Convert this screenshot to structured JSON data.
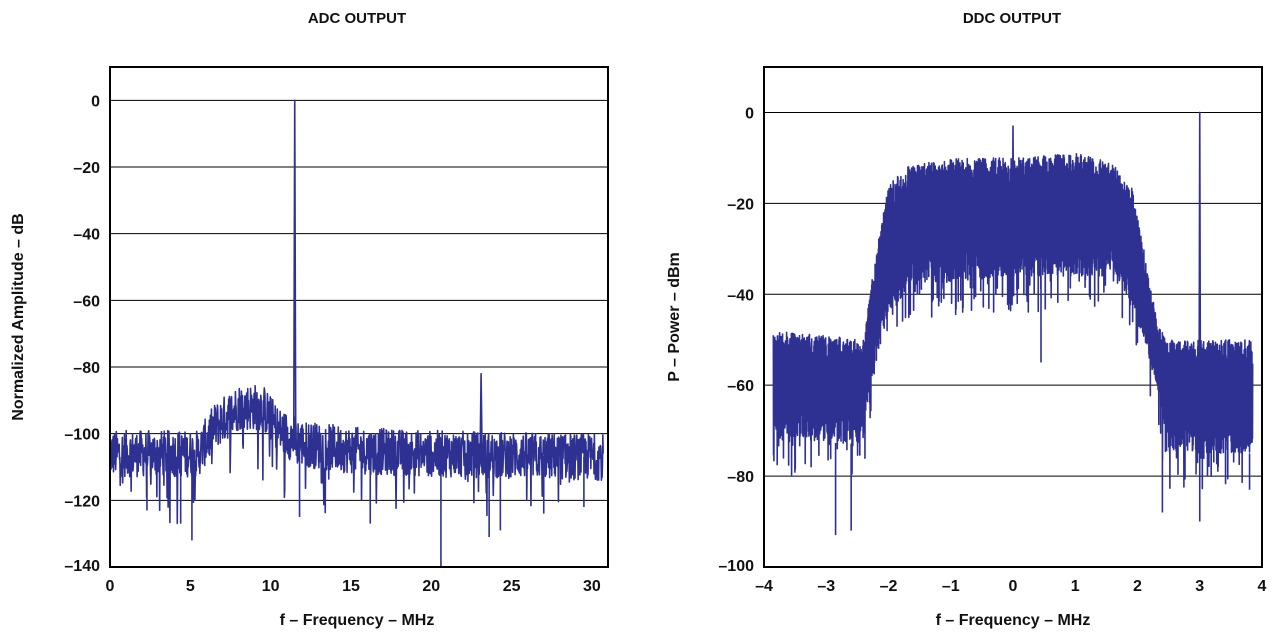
{
  "chart_data": [
    {
      "type": "line",
      "title": "ADC OUTPUT",
      "xlabel": "f – Frequency – MHz",
      "ylabel": "Normalized Amplitude – dB",
      "xlim": [
        0,
        31
      ],
      "ylim": [
        -140,
        10
      ],
      "xticks": [
        0,
        5,
        10,
        15,
        20,
        25,
        30
      ],
      "xtick_labels": [
        "0",
        "5",
        "10",
        "15",
        "20",
        "25",
        "30"
      ],
      "yticks": [
        0,
        -20,
        -40,
        -60,
        -80,
        -100,
        -120,
        -140
      ],
      "ytick_labels": [
        "0",
        "–20",
        "–40",
        "–60",
        "–80",
        "–100",
        "–120",
        "–140"
      ],
      "grid": "horizontal",
      "color": "#2e3192",
      "series": [
        {
          "noise_floor": [
            [
              0,
              -106
            ],
            [
              5.5,
              -106
            ],
            [
              6.5,
              -98
            ],
            [
              8,
              -92
            ],
            [
              9.5,
              -92
            ],
            [
              10.5,
              -99
            ],
            [
              12,
              -103
            ],
            [
              15,
              -105
            ],
            [
              20,
              -106
            ],
            [
              30.7,
              -107
            ]
          ],
          "peaks": [
            [
              11.5,
              0
            ],
            [
              23.1,
              -82
            ]
          ],
          "dips": [
            [
              20.6,
              -140
            ],
            [
              5.1,
              -132
            ],
            [
              2.3,
              -123
            ],
            [
              4.4,
              -127
            ],
            [
              11.8,
              -125
            ],
            [
              16.2,
              -127
            ],
            [
              23.6,
              -131
            ],
            [
              24.3,
              -129
            ],
            [
              27,
              -124
            ],
            [
              29.5,
              -122
            ]
          ],
          "x_end": 30.7
        }
      ]
    },
    {
      "type": "line",
      "title": "DDC OUTPUT",
      "xlabel": "f – Frequency – MHz",
      "ylabel": "P – Power – dBm",
      "xlim": [
        -4,
        4
      ],
      "ylim": [
        -100,
        10
      ],
      "xticks": [
        -4,
        -3,
        -2,
        -1,
        0,
        1,
        2,
        3,
        4
      ],
      "xtick_labels": [
        "–4",
        "–3",
        "–2",
        "–1",
        "0",
        "1",
        "2",
        "3",
        "4"
      ],
      "yticks": [
        0,
        -20,
        -40,
        -60,
        -80,
        -100
      ],
      "ytick_labels": [
        "0",
        "–20",
        "–40",
        "–60",
        "–80",
        "–100"
      ],
      "grid": "horizontal",
      "color": "#2e3192",
      "series": [
        {
          "envelope_top": [
            [
              -3.85,
              -48
            ],
            [
              -2.4,
              -50
            ],
            [
              -2.25,
              -35
            ],
            [
              -2.0,
              -16
            ],
            [
              -1.7,
              -12
            ],
            [
              -1.0,
              -10
            ],
            [
              0,
              -10
            ],
            [
              1.0,
              -9
            ],
            [
              1.6,
              -11
            ],
            [
              1.9,
              -16
            ],
            [
              2.1,
              -30
            ],
            [
              2.3,
              -45
            ],
            [
              2.45,
              -50
            ],
            [
              3.85,
              -50
            ]
          ],
          "envelope_bottom": [
            [
              -3.85,
              -72
            ],
            [
              -2.4,
              -73
            ],
            [
              -2.25,
              -58
            ],
            [
              -2.0,
              -44
            ],
            [
              -1.6,
              -38
            ],
            [
              0,
              -36
            ],
            [
              1.6,
              -36
            ],
            [
              2.0,
              -44
            ],
            [
              2.3,
              -60
            ],
            [
              2.45,
              -75
            ],
            [
              3.85,
              -75
            ]
          ],
          "peaks": [
            [
              0.0,
              -3
            ],
            [
              3.0,
              0
            ]
          ],
          "dips": [
            [
              -2.85,
              -93
            ],
            [
              -2.6,
              -92
            ],
            [
              0.45,
              -55
            ],
            [
              2.4,
              -88
            ],
            [
              3.0,
              -90
            ],
            [
              3.8,
              -83
            ]
          ],
          "x_start": -3.85,
          "x_end": 3.85
        }
      ]
    }
  ]
}
